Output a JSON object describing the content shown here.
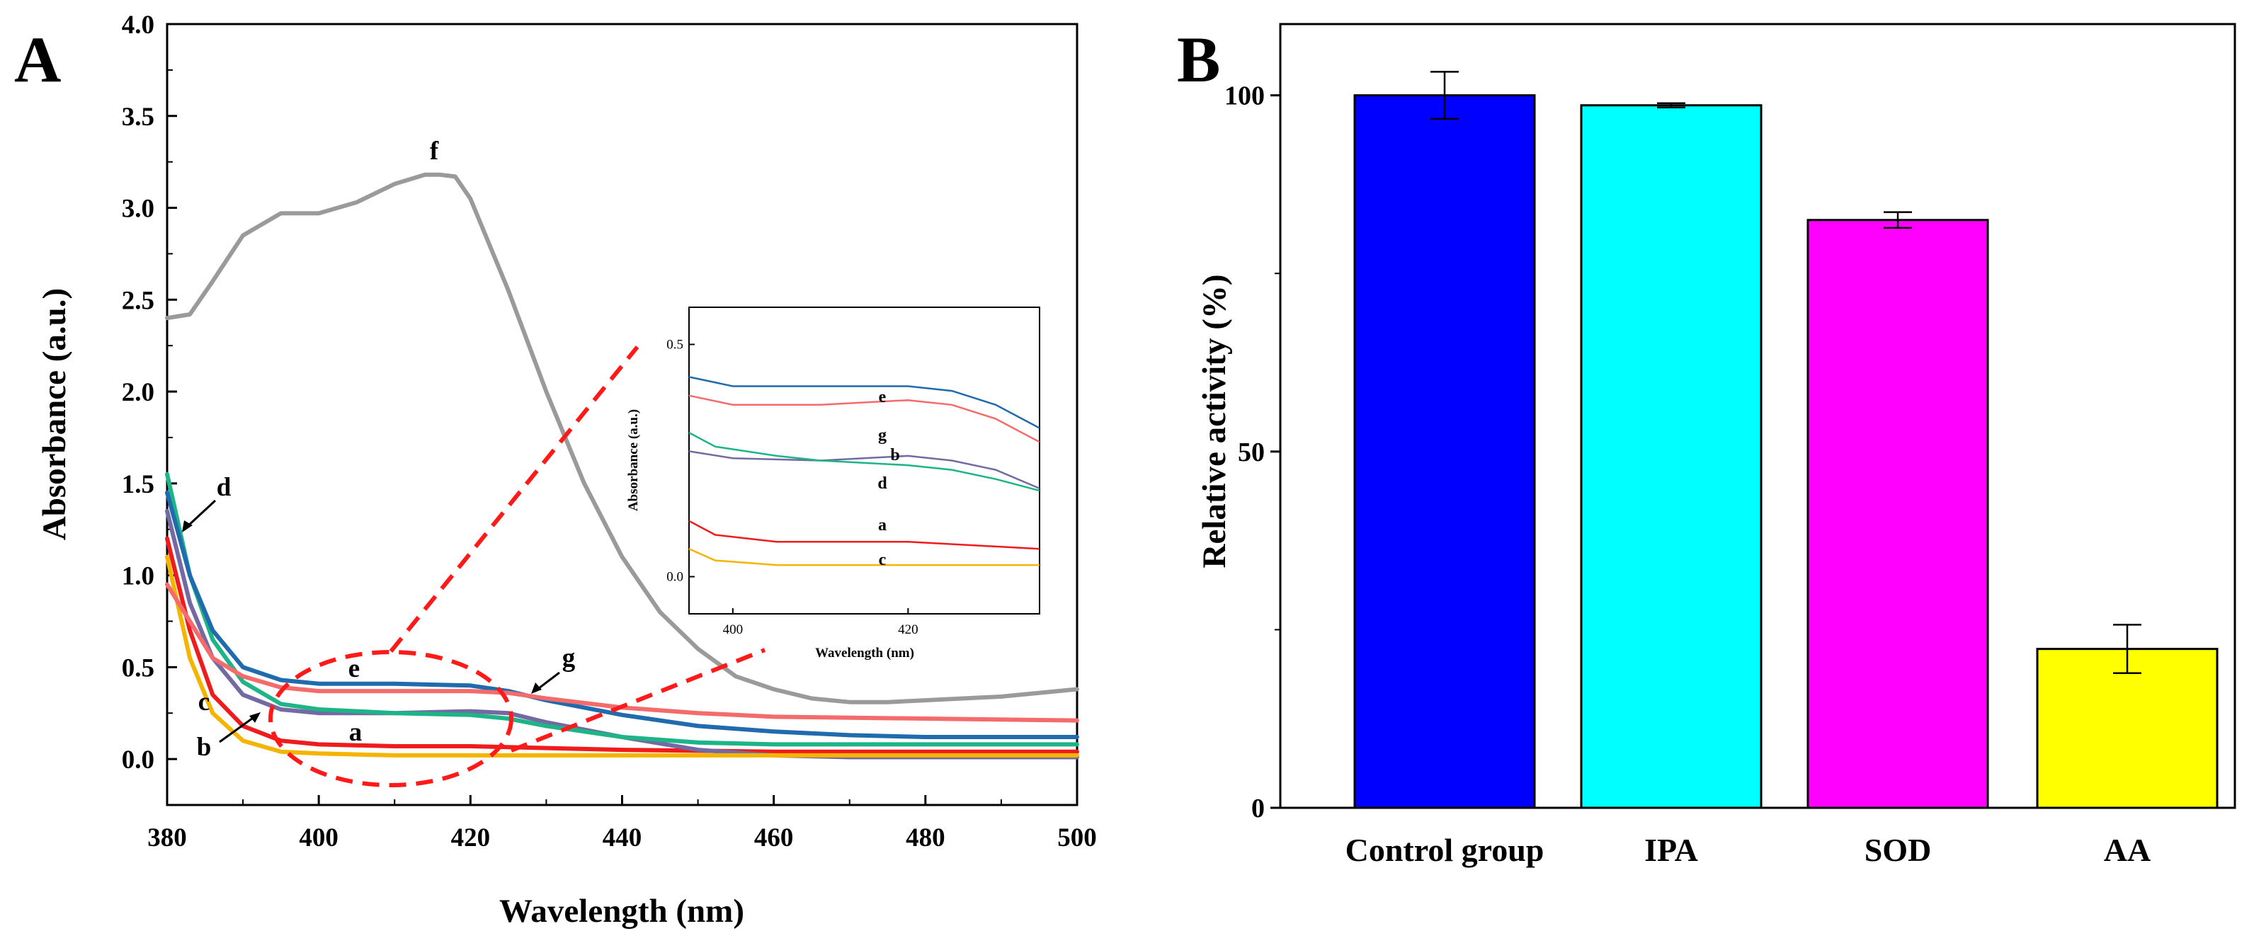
{
  "chart_data": [
    {
      "panel": "A",
      "type": "line",
      "xlabel": "Wavelength (nm)",
      "ylabel": "Absorbance (a.u.)",
      "xlim": [
        380,
        500
      ],
      "ylim": [
        -0.25,
        4.0
      ],
      "xticks": [
        "380",
        "400",
        "420",
        "440",
        "460",
        "480",
        "500"
      ],
      "yticks": [
        "0.0",
        "0.5",
        "1.0",
        "1.5",
        "2.0",
        "2.5",
        "3.0",
        "3.5",
        "4.0"
      ],
      "series": [
        {
          "name": "a",
          "color": "#ee1c1c",
          "x": [
            380,
            383,
            386,
            390,
            395,
            400,
            410,
            420,
            440,
            460,
            480,
            500
          ],
          "y": [
            1.2,
            0.7,
            0.35,
            0.18,
            0.1,
            0.08,
            0.07,
            0.07,
            0.05,
            0.04,
            0.04,
            0.04
          ]
        },
        {
          "name": "b",
          "color": "#7469a3",
          "x": [
            380,
            383,
            386,
            390,
            395,
            400,
            410,
            420,
            425,
            430,
            440,
            450,
            460,
            470,
            480,
            500
          ],
          "y": [
            1.35,
            0.85,
            0.55,
            0.35,
            0.27,
            0.25,
            0.25,
            0.26,
            0.25,
            0.2,
            0.12,
            0.05,
            0.02,
            0.01,
            0.01,
            0.01
          ]
        },
        {
          "name": "c",
          "color": "#f5b400",
          "x": [
            380,
            383,
            386,
            390,
            395,
            400,
            410,
            420,
            440,
            460,
            480,
            500
          ],
          "y": [
            1.1,
            0.55,
            0.25,
            0.1,
            0.04,
            0.03,
            0.02,
            0.02,
            0.02,
            0.02,
            0.02,
            0.02
          ]
        },
        {
          "name": "d",
          "color": "#1db487",
          "x": [
            380,
            383,
            386,
            390,
            395,
            400,
            410,
            420,
            425,
            430,
            440,
            450,
            460,
            470,
            480,
            500
          ],
          "y": [
            1.55,
            1.0,
            0.65,
            0.42,
            0.3,
            0.27,
            0.25,
            0.24,
            0.22,
            0.18,
            0.12,
            0.09,
            0.08,
            0.08,
            0.08,
            0.08
          ]
        },
        {
          "name": "e",
          "color": "#1f6bad",
          "x": [
            380,
            383,
            386,
            390,
            395,
            400,
            410,
            420,
            425,
            430,
            440,
            450,
            460,
            470,
            480,
            500
          ],
          "y": [
            1.45,
            1.0,
            0.7,
            0.5,
            0.43,
            0.41,
            0.41,
            0.4,
            0.37,
            0.32,
            0.24,
            0.18,
            0.15,
            0.13,
            0.12,
            0.12
          ]
        },
        {
          "name": "f",
          "color": "#9a9a9a",
          "x": [
            380,
            383,
            386,
            390,
            395,
            400,
            405,
            410,
            414,
            416,
            418,
            420,
            425,
            430,
            435,
            440,
            445,
            450,
            455,
            460,
            465,
            470,
            475,
            480,
            490,
            500
          ],
          "y": [
            2.4,
            2.42,
            2.6,
            2.85,
            2.97,
            2.97,
            3.03,
            3.13,
            3.18,
            3.18,
            3.17,
            3.05,
            2.55,
            2.0,
            1.5,
            1.1,
            0.8,
            0.6,
            0.45,
            0.38,
            0.33,
            0.31,
            0.31,
            0.32,
            0.34,
            0.38
          ]
        },
        {
          "name": "g",
          "color": "#f36b6b",
          "x": [
            380,
            383,
            386,
            390,
            395,
            400,
            410,
            420,
            425,
            430,
            440,
            450,
            460,
            480,
            500
          ],
          "y": [
            0.95,
            0.75,
            0.55,
            0.45,
            0.39,
            0.37,
            0.37,
            0.37,
            0.36,
            0.33,
            0.28,
            0.25,
            0.23,
            0.22,
            0.21
          ]
        }
      ],
      "annotations": [
        "a",
        "b",
        "c",
        "d",
        "e",
        "f",
        "g"
      ],
      "inset": {
        "xlabel": "Wavelength (nm)",
        "ylabel": "Absorbance (a.u.)",
        "xlim": [
          395,
          435
        ],
        "ylim": [
          -0.08,
          0.58
        ],
        "xticks": [
          "400",
          "420"
        ],
        "yticks": [
          "0.0",
          "0.5"
        ],
        "labels": [
          "e",
          "g",
          "b",
          "d",
          "a",
          "c"
        ]
      }
    },
    {
      "panel": "B",
      "type": "bar",
      "ylabel": "Relative activity (%)",
      "categories": [
        "Control group",
        "IPA",
        "SOD",
        "AA"
      ],
      "values": [
        100,
        98.6,
        82.5,
        22.3
      ],
      "errors": [
        3.3,
        0.3,
        1.1,
        3.4
      ],
      "colors": [
        "#0000ff",
        "#00ffff",
        "#ff00ff",
        "#ffff00"
      ],
      "ylim": [
        0,
        110
      ],
      "yticks": [
        "0",
        "50",
        "100"
      ]
    }
  ]
}
